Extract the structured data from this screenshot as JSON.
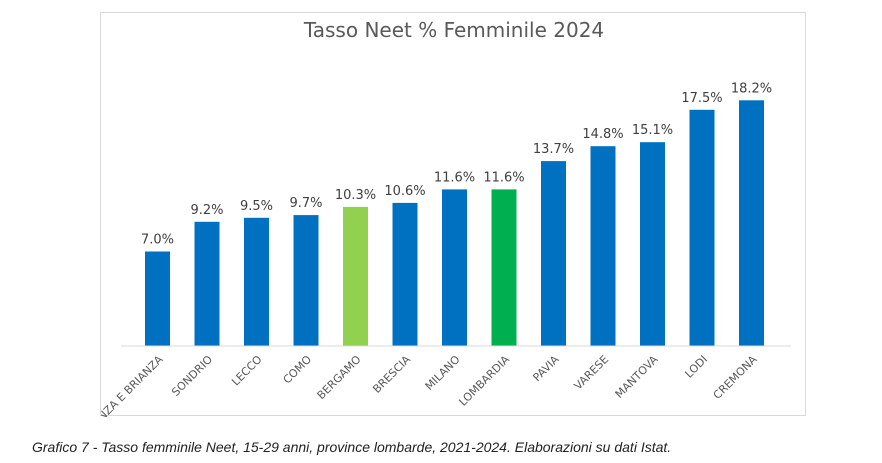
{
  "chart_data": {
    "type": "bar",
    "title": "Tasso Neet % Femminile 2024",
    "xlabel": "",
    "ylabel": "",
    "categories": [
      "MONZA E BRIANZA",
      "SONDRIO",
      "LECCO",
      "COMO",
      "BERGAMO",
      "BRESCIA",
      "MILANO",
      "LOMBARDIA",
      "PAVIA",
      "VARESE",
      "MANTOVA",
      "LODI",
      "CREMONA"
    ],
    "values": [
      7.0,
      9.2,
      9.5,
      9.7,
      10.3,
      10.6,
      11.6,
      11.6,
      13.7,
      14.8,
      15.1,
      17.5,
      18.2
    ],
    "value_labels": [
      "7.0%",
      "9.2%",
      "9.5%",
      "9.7%",
      "10.3%",
      "10.6%",
      "11.6%",
      "11.6%",
      "13.7%",
      "14.8%",
      "15.1%",
      "17.5%",
      "18.2%"
    ],
    "bar_colors": [
      "#0070c0",
      "#0070c0",
      "#0070c0",
      "#0070c0",
      "#92d050",
      "#0070c0",
      "#0070c0",
      "#00b050",
      "#0070c0",
      "#0070c0",
      "#0070c0",
      "#0070c0",
      "#0070c0"
    ],
    "ylim": [
      0,
      20
    ],
    "grid": false,
    "legend": "none"
  },
  "colors": {
    "province": "#0070c0",
    "bergamo": "#92d050",
    "lombardia": "#00b050",
    "axis": "#d9d9d9"
  },
  "caption": "Grafico 7 - Tasso femminile Neet, 15-29 anni, province lombarde, 2021-2024. Elaborazioni su dati Istat."
}
